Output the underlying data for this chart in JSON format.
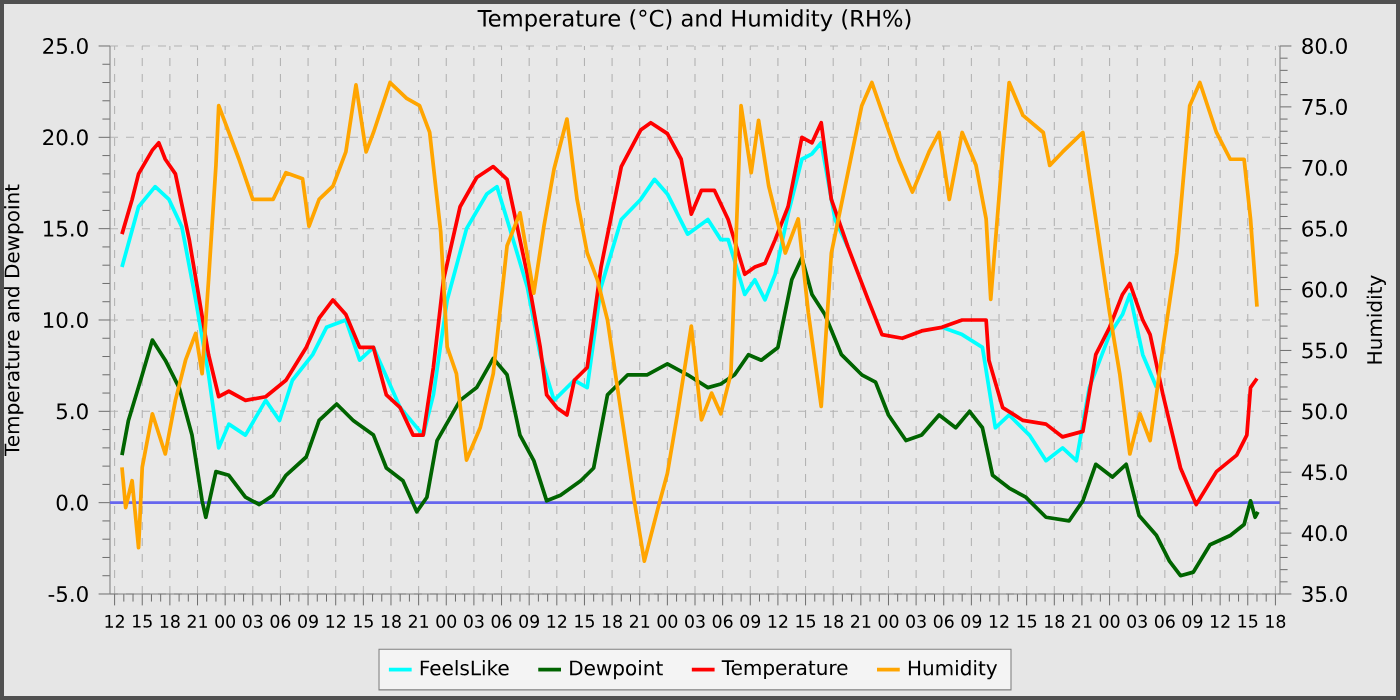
{
  "chart_data": {
    "type": "line",
    "title": "Temperature (°C) and Humidity (RH%)",
    "ylabel": "Temperature and Dewpoint",
    "y2label": "Humidity",
    "xlim": [
      11.5,
      138.5
    ],
    "xticks": [
      {
        "value": 12,
        "label": "12"
      },
      {
        "value": 15,
        "label": "15"
      },
      {
        "value": 18,
        "label": "18"
      },
      {
        "value": 21,
        "label": "21"
      },
      {
        "value": 24,
        "label": "00"
      },
      {
        "value": 27,
        "label": "03"
      },
      {
        "value": 30,
        "label": "06"
      },
      {
        "value": 33,
        "label": "09"
      },
      {
        "value": 36,
        "label": "12"
      },
      {
        "value": 39,
        "label": "15"
      },
      {
        "value": 42,
        "label": "18"
      },
      {
        "value": 45,
        "label": "21"
      },
      {
        "value": 48,
        "label": "00"
      },
      {
        "value": 51,
        "label": "03"
      },
      {
        "value": 54,
        "label": "06"
      },
      {
        "value": 57,
        "label": "09"
      },
      {
        "value": 60,
        "label": "12"
      },
      {
        "value": 63,
        "label": "15"
      },
      {
        "value": 66,
        "label": "18"
      },
      {
        "value": 69,
        "label": "21"
      },
      {
        "value": 72,
        "label": "00"
      },
      {
        "value": 75,
        "label": "03"
      },
      {
        "value": 78,
        "label": "06"
      },
      {
        "value": 81,
        "label": "09"
      },
      {
        "value": 84,
        "label": "12"
      },
      {
        "value": 87,
        "label": "15"
      },
      {
        "value": 90,
        "label": "18"
      },
      {
        "value": 93,
        "label": "21"
      },
      {
        "value": 96,
        "label": "00"
      },
      {
        "value": 99,
        "label": "03"
      },
      {
        "value": 102,
        "label": "06"
      },
      {
        "value": 105,
        "label": "09"
      },
      {
        "value": 108,
        "label": "12"
      },
      {
        "value": 111,
        "label": "15"
      },
      {
        "value": 114,
        "label": "18"
      },
      {
        "value": 117,
        "label": "21"
      },
      {
        "value": 120,
        "label": "00"
      },
      {
        "value": 123,
        "label": "03"
      },
      {
        "value": 126,
        "label": "06"
      },
      {
        "value": 129,
        "label": "09"
      },
      {
        "value": 132,
        "label": "12"
      },
      {
        "value": 135,
        "label": "15"
      },
      {
        "value": 138,
        "label": "18"
      }
    ],
    "ylim": [
      -5,
      25
    ],
    "yticks": [
      {
        "value": -5,
        "label": "-5.0"
      },
      {
        "value": 0,
        "label": "0.0"
      },
      {
        "value": 5,
        "label": "5.0"
      },
      {
        "value": 10,
        "label": "10.0"
      },
      {
        "value": 15,
        "label": "15.0"
      },
      {
        "value": 20,
        "label": "20.0"
      },
      {
        "value": 25,
        "label": "25.0"
      }
    ],
    "y2lim": [
      35,
      80
    ],
    "y2ticks": [
      {
        "value": 35,
        "label": "35.0"
      },
      {
        "value": 40,
        "label": "40.0"
      },
      {
        "value": 45,
        "label": "45.0"
      },
      {
        "value": 50,
        "label": "50.0"
      },
      {
        "value": 55,
        "label": "55.0"
      },
      {
        "value": 60,
        "label": "60.0"
      },
      {
        "value": 65,
        "label": "65.0"
      },
      {
        "value": 70,
        "label": "70.0"
      },
      {
        "value": 75,
        "label": "75.0"
      },
      {
        "value": 80,
        "label": "80.0"
      }
    ],
    "grid": true,
    "legend": "bottom",
    "line_style": "solid",
    "ref_lines": [
      {
        "axis": "y",
        "value": 0,
        "color": "#6666ee"
      }
    ],
    "series": [
      {
        "name": "FeelsLike",
        "color": "#00ffff",
        "x": [
          12.8,
          14.6,
          16.4,
          17.9,
          19.3,
          20.8,
          22.2,
          23.3,
          24.4,
          26.2,
          28.4,
          29.9,
          31.3,
          33.5,
          35.0,
          37.1,
          38.6,
          40.1,
          43.0,
          45.5,
          46.6,
          48.1,
          50.2,
          52.4,
          53.5,
          54.6,
          56.8,
          58.2,
          59.7,
          61.9,
          63.3,
          64.8,
          67.0,
          69.1,
          70.6,
          72.0,
          74.2,
          76.4,
          77.8,
          78.6,
          80.4,
          81.5,
          82.6,
          83.7,
          85.1,
          86.6,
          87.7,
          88.7,
          90.2,
          91.6,
          93.8,
          95.3,
          97.5,
          99.6,
          101.8,
          104.0,
          106.2,
          107.6,
          109.1,
          111.3,
          113.1,
          114.9,
          116.4,
          117.8,
          120.0,
          121.4,
          122.2,
          123.6,
          125.1
        ],
        "values": [
          12.9,
          16.2,
          17.3,
          16.6,
          15.1,
          11.1,
          7.0,
          3.0,
          4.3,
          3.7,
          5.6,
          4.5,
          6.7,
          8.1,
          9.6,
          10.0,
          7.8,
          8.5,
          5.2,
          3.7,
          5.9,
          11.1,
          15.0,
          16.9,
          17.3,
          15.5,
          11.8,
          8.1,
          5.6,
          6.7,
          6.3,
          11.8,
          15.5,
          16.6,
          17.7,
          16.9,
          14.7,
          15.5,
          14.4,
          14.4,
          11.4,
          12.2,
          11.1,
          12.5,
          15.8,
          18.8,
          19.1,
          19.7,
          15.5,
          14.0,
          null,
          null,
          null,
          null,
          9.6,
          9.2,
          8.5,
          4.1,
          4.8,
          3.7,
          2.3,
          3.0,
          2.3,
          6.3,
          9.2,
          10.3,
          11.4,
          8.1,
          6.3
        ]
      },
      {
        "name": "Dewpoint",
        "color": "#006400",
        "x": [
          12.8,
          13.5,
          15.0,
          16.1,
          17.5,
          19.0,
          20.4,
          21.5,
          21.9,
          23.0,
          24.4,
          26.2,
          27.7,
          29.2,
          30.6,
          32.8,
          34.2,
          36.1,
          37.9,
          40.1,
          41.5,
          43.3,
          44.8,
          45.9,
          47.0,
          49.5,
          51.3,
          53.1,
          54.6,
          56.0,
          57.5,
          58.9,
          60.4,
          62.6,
          64.0,
          65.5,
          67.7,
          69.8,
          72.0,
          74.2,
          76.4,
          77.8,
          79.3,
          80.8,
          82.2,
          84.0,
          85.5,
          86.6,
          87.7,
          89.1,
          90.9,
          93.1,
          94.6,
          96.0,
          97.9,
          99.6,
          101.5,
          103.3,
          104.8,
          106.2,
          107.3,
          109.1,
          110.9,
          113.1,
          115.6,
          117.1,
          118.5,
          120.3,
          121.8,
          123.2,
          125.1,
          126.5,
          127.7,
          129.1,
          130.9,
          133.1,
          134.6,
          135.3,
          135.8,
          136.1
        ],
        "values": [
          2.6,
          4.5,
          7.0,
          8.9,
          7.8,
          6.3,
          3.7,
          0.1,
          -0.8,
          1.7,
          1.5,
          0.3,
          -0.1,
          0.4,
          1.5,
          2.5,
          4.5,
          5.4,
          4.5,
          3.7,
          1.9,
          1.2,
          -0.5,
          0.3,
          3.4,
          5.6,
          6.3,
          7.9,
          7.0,
          3.7,
          2.3,
          0.1,
          0.4,
          1.2,
          1.9,
          5.9,
          7.0,
          7.0,
          7.6,
          7.0,
          6.3,
          6.5,
          7.0,
          8.1,
          7.8,
          8.5,
          12.2,
          13.4,
          11.4,
          10.3,
          8.1,
          7.0,
          6.6,
          4.8,
          3.4,
          3.7,
          4.8,
          4.1,
          5.0,
          4.1,
          1.5,
          0.8,
          0.3,
          -0.8,
          -1.0,
          0.1,
          2.1,
          1.4,
          2.1,
          -0.7,
          -1.8,
          -3.2,
          -4.0,
          -3.8,
          -2.3,
          -1.8,
          -1.2,
          0.1,
          -0.8,
          -0.5
        ]
      },
      {
        "name": "Temperature",
        "color": "#ff0000",
        "x": [
          12.8,
          13.9,
          14.6,
          16.1,
          16.8,
          17.5,
          18.6,
          20.1,
          21.2,
          22.2,
          23.3,
          24.4,
          26.2,
          28.4,
          30.6,
          32.8,
          34.2,
          35.7,
          37.1,
          38.6,
          40.1,
          41.5,
          43.0,
          44.4,
          45.5,
          46.6,
          47.7,
          49.5,
          51.3,
          53.1,
          54.6,
          56.8,
          58.2,
          58.9,
          60.0,
          61.1,
          61.9,
          63.3,
          64.8,
          67.0,
          69.1,
          70.2,
          72.0,
          73.5,
          74.6,
          75.7,
          77.1,
          78.6,
          80.4,
          81.5,
          82.6,
          83.7,
          85.1,
          86.6,
          87.7,
          88.7,
          89.8,
          91.6,
          93.8,
          95.3,
          97.5,
          99.6,
          101.8,
          104.0,
          106.6,
          106.9,
          108.4,
          110.6,
          113.1,
          114.9,
          117.1,
          118.5,
          120.0,
          121.4,
          122.2,
          123.6,
          124.4,
          125.8,
          127.7,
          129.4,
          131.6,
          133.8,
          134.9,
          135.3,
          136.0
        ],
        "values": [
          14.7,
          16.6,
          18.0,
          19.3,
          19.7,
          18.8,
          18.0,
          14.4,
          11.1,
          8.1,
          5.8,
          6.1,
          5.6,
          5.8,
          6.7,
          8.5,
          10.1,
          11.1,
          10.3,
          8.5,
          8.5,
          5.9,
          5.2,
          3.7,
          3.7,
          7.4,
          12.2,
          16.2,
          17.8,
          18.4,
          17.7,
          12.5,
          8.5,
          5.9,
          5.2,
          4.8,
          6.7,
          7.4,
          12.9,
          18.4,
          20.4,
          20.8,
          20.2,
          18.8,
          15.8,
          17.1,
          17.1,
          15.5,
          12.5,
          12.9,
          13.1,
          14.4,
          16.2,
          20.0,
          19.7,
          20.8,
          16.6,
          14.0,
          11.1,
          9.2,
          9.0,
          9.4,
          9.6,
          10.0,
          10.0,
          7.8,
          5.2,
          4.5,
          4.3,
          3.6,
          3.9,
          8.1,
          9.6,
          11.4,
          12.0,
          10.0,
          9.2,
          5.9,
          1.9,
          -0.1,
          1.7,
          2.6,
          3.7,
          6.3,
          6.8
        ]
      },
      {
        "name": "Humidity",
        "color": "#ffa500",
        "axis": "y2",
        "x": [
          12.8,
          13.2,
          13.9,
          14.6,
          15.0,
          16.1,
          17.5,
          18.6,
          19.7,
          20.8,
          21.5,
          22.2,
          23.0,
          23.3,
          24.4,
          25.5,
          27.0,
          29.2,
          30.6,
          32.4,
          33.1,
          34.2,
          35.7,
          37.1,
          38.2,
          39.3,
          40.1,
          41.9,
          43.7,
          45.1,
          46.2,
          47.4,
          48.1,
          49.1,
          50.2,
          51.7,
          53.1,
          54.6,
          56.0,
          57.5,
          58.6,
          59.7,
          61.1,
          62.2,
          63.3,
          64.4,
          65.5,
          67.0,
          68.4,
          69.5,
          71.0,
          72.0,
          73.1,
          74.6,
          75.7,
          76.8,
          77.8,
          78.9,
          80.0,
          81.1,
          81.9,
          83.0,
          84.8,
          86.2,
          87.3,
          88.7,
          89.8,
          91.6,
          93.1,
          94.2,
          95.3,
          97.1,
          98.6,
          100.4,
          101.5,
          102.6,
          104.0,
          105.5,
          106.6,
          107.1,
          108.4,
          109.1,
          110.6,
          112.8,
          113.5,
          114.9,
          117.1,
          118.5,
          120.0,
          121.1,
          122.2,
          123.3,
          124.4,
          125.8,
          127.3,
          128.7,
          129.8,
          131.6,
          133.1,
          134.6,
          135.3,
          136.0
        ],
        "values": [
          45.4,
          42.1,
          44.3,
          38.8,
          45.4,
          49.8,
          46.5,
          50.9,
          54.2,
          56.4,
          53.1,
          60.8,
          70.2,
          75.1,
          72.9,
          70.7,
          67.4,
          67.4,
          69.6,
          69.1,
          65.2,
          67.4,
          68.5,
          71.3,
          76.8,
          71.3,
          72.9,
          77.0,
          75.7,
          75.1,
          72.9,
          64.7,
          55.3,
          53.1,
          46.0,
          48.7,
          53.1,
          63.6,
          66.3,
          59.7,
          65.2,
          69.9,
          74.0,
          67.4,
          63.0,
          60.8,
          57.5,
          49.8,
          42.7,
          37.7,
          42.1,
          44.9,
          49.8,
          57.0,
          49.3,
          51.5,
          49.8,
          53.1,
          75.1,
          69.6,
          73.9,
          68.5,
          63.0,
          65.8,
          58.1,
          50.4,
          63.0,
          69.6,
          75.1,
          77.0,
          74.6,
          70.7,
          68.0,
          71.3,
          72.9,
          67.4,
          72.9,
          70.2,
          65.8,
          59.2,
          71.3,
          77.0,
          74.3,
          72.9,
          70.2,
          71.3,
          72.9,
          65.8,
          58.1,
          53.1,
          46.5,
          49.8,
          47.6,
          55.3,
          63.0,
          75.1,
          77.0,
          72.9,
          70.7,
          70.7,
          65.8,
          58.6
        ]
      }
    ]
  }
}
